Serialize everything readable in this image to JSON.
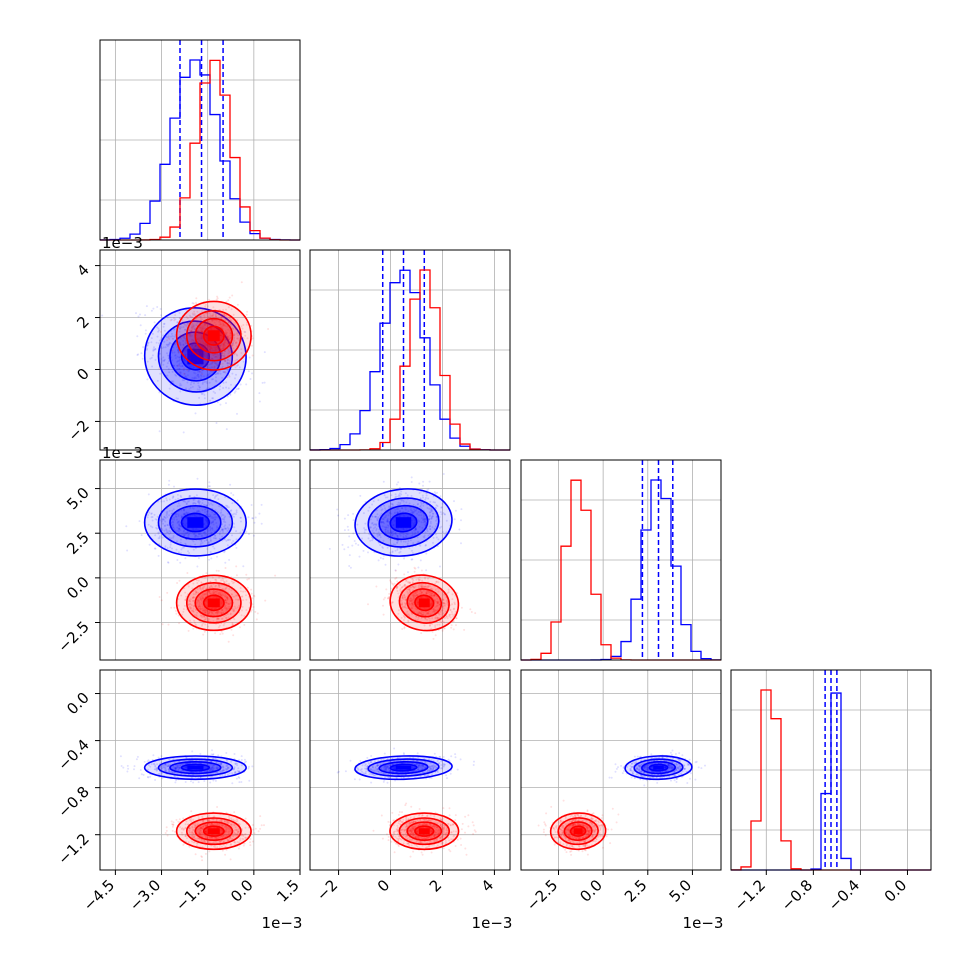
{
  "chart_data": {
    "type": "corner",
    "colors": {
      "blue": "#0000ff",
      "red": "#ff0000",
      "grid": "#b0b0b0"
    },
    "offset_label": "1e−3",
    "parameters": [
      {
        "index": 0,
        "range": [
          -5.0,
          1.5
        ],
        "ticks": [
          -4.5,
          -3.0,
          -1.5,
          0.0,
          1.5
        ],
        "tick_labels": [
          "−4.5",
          "−3.0",
          "−1.5",
          "0.0",
          "1.5"
        ]
      },
      {
        "index": 1,
        "range": [
          -3.1,
          4.6
        ],
        "ticks": [
          -2,
          0,
          2,
          4
        ],
        "tick_labels": [
          "−2",
          "0",
          "2",
          "4"
        ]
      },
      {
        "index": 2,
        "range": [
          -4.6,
          6.6
        ],
        "ticks": [
          -2.5,
          0.0,
          2.5,
          5.0
        ],
        "tick_labels": [
          "−2.5",
          "0.0",
          "2.5",
          "5.0"
        ]
      },
      {
        "index": 3,
        "range": [
          -1.5,
          0.2
        ],
        "ticks": [
          -1.2,
          -0.8,
          -0.4,
          0.0
        ],
        "tick_labels": [
          "−1.2",
          "−0.8",
          "−0.4",
          "0.0"
        ]
      }
    ],
    "distributions": [
      {
        "color": "blue",
        "means": [
          -1.9,
          0.5,
          3.1,
          -0.63
        ],
        "sds": [
          0.75,
          0.85,
          0.85,
          0.045
        ],
        "corr": [
          [
            1,
            -0.35,
            0,
            0
          ],
          [
            -0.35,
            1,
            0.25,
            0.2
          ],
          [
            0,
            0.25,
            1,
            0.1
          ],
          [
            0,
            0.2,
            0.1,
            1
          ]
        ],
        "quantile_lines": [
          [
            -2.4,
            -1.7,
            -1.0
          ],
          [
            -0.3,
            0.5,
            1.3
          ],
          [
            2.2,
            3.1,
            3.9
          ],
          [
            -0.7,
            -0.65,
            -0.6
          ]
        ]
      },
      {
        "color": "red",
        "means": [
          -1.3,
          1.3,
          -1.4,
          -1.17
        ],
        "sds": [
          0.55,
          0.6,
          0.7,
          0.07
        ],
        "corr": [
          [
            1,
            0,
            0,
            0
          ],
          [
            0,
            1,
            -0.35,
            0
          ],
          [
            0,
            -0.35,
            1,
            0.1
          ],
          [
            0,
            0,
            0.1,
            1
          ]
        ],
        "quantile_lines": []
      }
    ]
  }
}
